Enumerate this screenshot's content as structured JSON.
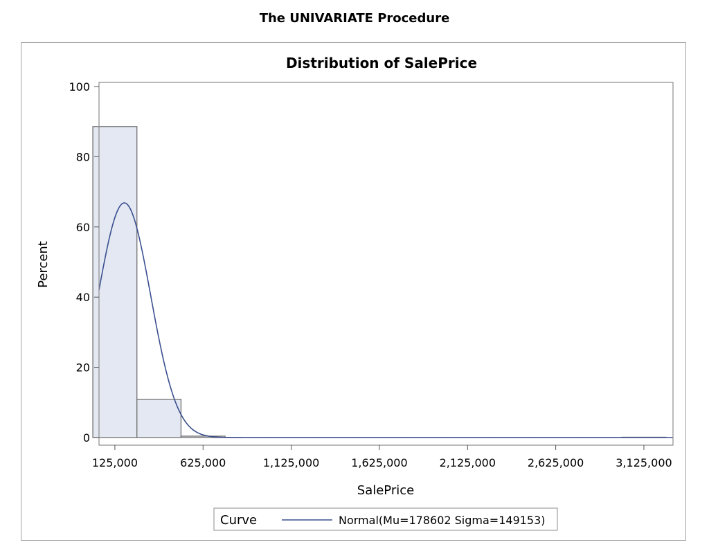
{
  "page": {
    "heading": "The UNIVARIATE Procedure"
  },
  "chart_data": {
    "type": "bar",
    "title": "Distribution of SalePrice",
    "xlabel": "SalePrice",
    "ylabel": "Percent",
    "xlim": [
      35000,
      3290000
    ],
    "ylim": [
      0,
      100
    ],
    "x_ticks": [
      125000,
      625000,
      1125000,
      1625000,
      2125000,
      2625000,
      3125000
    ],
    "x_tick_labels": [
      "125,000",
      "625,000",
      "1,125,000",
      "1,625,000",
      "2,125,000",
      "2,625,000",
      "3,125,000"
    ],
    "y_ticks": [
      0,
      20,
      40,
      60,
      80,
      100
    ],
    "y_tick_labels": [
      "0",
      "20",
      "40",
      "60",
      "80",
      "100"
    ],
    "bin_width": 250000,
    "bins": [
      {
        "start": 0,
        "end": 250000,
        "value": 88.6
      },
      {
        "start": 250000,
        "end": 500000,
        "value": 10.9
      },
      {
        "start": 500000,
        "end": 750000,
        "value": 0.4
      },
      {
        "start": 750000,
        "end": 1000000,
        "value": 0.0
      },
      {
        "start": 1000000,
        "end": 1250000,
        "value": 0.0
      },
      {
        "start": 1250000,
        "end": 1500000,
        "value": 0.0
      },
      {
        "start": 1500000,
        "end": 1750000,
        "value": 0.0
      },
      {
        "start": 1750000,
        "end": 2000000,
        "value": 0.0
      },
      {
        "start": 2000000,
        "end": 2250000,
        "value": 0.0
      },
      {
        "start": 2250000,
        "end": 2500000,
        "value": 0.0
      },
      {
        "start": 2500000,
        "end": 2750000,
        "value": 0.0
      },
      {
        "start": 2750000,
        "end": 3000000,
        "value": 0.0
      },
      {
        "start": 3000000,
        "end": 3250000,
        "value": 0.1
      }
    ],
    "curve": {
      "type": "normal",
      "mu": 178602,
      "sigma": 149153,
      "color": "#3a4f8f"
    },
    "bar_fill": "#e3e8f2",
    "bar_stroke": "#707070",
    "grid": false,
    "legend": {
      "placement": "bottom-center",
      "title": "Curve",
      "entries": [
        {
          "label": "Normal(Mu=178602 Sigma=149153)",
          "color": "#3a4f8f"
        }
      ]
    }
  }
}
